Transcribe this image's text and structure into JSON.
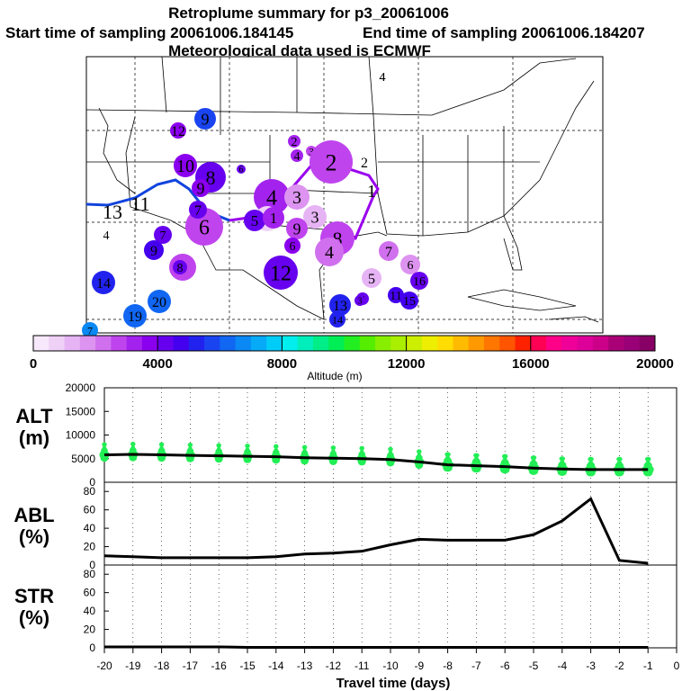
{
  "header": {
    "title": "Retroplume summary for p3_20061006",
    "start": "Start time of sampling 20061006.184145",
    "end": "End time of sampling 20061006.184207",
    "met": "Meteorological data used is ECMWF"
  },
  "colorbar": {
    "ticks": [
      "0",
      "4000",
      "8000",
      "12000",
      "16000",
      "20000"
    ],
    "label": "Altitude (m)"
  },
  "map_clusters": [
    {
      "label": "4",
      "alt": 3400
    },
    {
      "label": "9",
      "alt": 5800
    },
    {
      "label": "12",
      "alt": 3800
    },
    {
      "label": "2",
      "alt": 3000
    },
    {
      "label": "3",
      "alt": 2500
    },
    {
      "label": "2",
      "alt": 2600
    },
    {
      "label": "4",
      "alt": 3000
    },
    {
      "label": "8",
      "alt": 4400
    },
    {
      "label": "9",
      "alt": 3800
    },
    {
      "label": "10",
      "alt": 3500
    },
    {
      "label": "4",
      "alt": 3400
    },
    {
      "label": "3",
      "alt": 1600
    },
    {
      "label": "3",
      "alt": 1300
    },
    {
      "label": "3",
      "alt": 900
    },
    {
      "label": "6",
      "alt": 2900
    },
    {
      "label": "7",
      "alt": 4000
    },
    {
      "label": "5",
      "alt": 4300
    },
    {
      "label": "1",
      "alt": 3100
    },
    {
      "label": "8",
      "alt": 2900
    },
    {
      "label": "9",
      "alt": 2900
    },
    {
      "label": "6",
      "alt": 3500
    },
    {
      "label": "4",
      "alt": 2200
    },
    {
      "label": "8",
      "alt": 2700
    },
    {
      "label": "7",
      "alt": 2300
    },
    {
      "label": "6",
      "alt": 1900
    },
    {
      "label": "6",
      "alt": 4100
    },
    {
      "label": "5",
      "alt": 1100
    },
    {
      "label": "12",
      "alt": 4200
    },
    {
      "label": "7",
      "alt": 4100
    },
    {
      "label": "9",
      "alt": 4600
    },
    {
      "label": "8",
      "alt": 4400
    },
    {
      "label": "3",
      "alt": 4400
    },
    {
      "label": "14",
      "alt": 5400
    },
    {
      "label": "20",
      "alt": 6200
    },
    {
      "label": "19",
      "alt": 6400
    },
    {
      "label": "13",
      "alt": 5300
    },
    {
      "label": "14",
      "alt": 5400
    },
    {
      "label": "3",
      "alt": 4000
    },
    {
      "label": "11",
      "alt": 4700
    },
    {
      "label": "15",
      "alt": 4600
    },
    {
      "label": "16",
      "alt": 4400
    },
    {
      "label": "7",
      "alt": 6700
    }
  ],
  "map_labels": [
    {
      "label": "4"
    },
    {
      "label": "2"
    },
    {
      "label": "1"
    },
    {
      "label": "13"
    },
    {
      "label": "11"
    },
    {
      "label": "4"
    }
  ],
  "chart_data": [
    {
      "type": "line",
      "name": "ALT",
      "ylabel_line1": "ALT",
      "ylabel_line2": "(m)",
      "ylim": [
        0,
        20000
      ],
      "yticks": [
        "0",
        "5000",
        "10000",
        "15000",
        "20000"
      ],
      "x": [
        -20,
        -19,
        -18,
        -17,
        -16,
        -15,
        -14,
        -13,
        -12,
        -11,
        -10,
        -9,
        -8,
        -7,
        -6,
        -5,
        -4,
        -3,
        -2,
        -1
      ],
      "values": [
        5800,
        5900,
        5800,
        5700,
        5600,
        5500,
        5400,
        5200,
        5100,
        5000,
        4800,
        4300,
        3700,
        3500,
        3300,
        3000,
        2800,
        2700,
        2700,
        2700
      ],
      "scatter_color": "#22ee55"
    },
    {
      "type": "line",
      "name": "ABL",
      "ylabel_line1": "ABL",
      "ylabel_line2": "(%)",
      "ylim": [
        0,
        90
      ],
      "yticks": [
        "0",
        "20",
        "40",
        "60",
        "80"
      ],
      "x": [
        -20,
        -19,
        -18,
        -17,
        -16,
        -15,
        -14,
        -13,
        -12,
        -11,
        -10,
        -9,
        -8,
        -7,
        -6,
        -5,
        -4,
        -3,
        -2,
        -1
      ],
      "values": [
        10,
        9,
        8,
        8,
        8,
        8,
        9,
        12,
        13,
        15,
        22,
        28,
        27,
        27,
        27,
        33,
        48,
        72,
        5,
        2
      ]
    },
    {
      "type": "line",
      "name": "STR",
      "ylabel_line1": "STR",
      "ylabel_line2": "(%)",
      "ylim": [
        0,
        90
      ],
      "yticks": [
        "0",
        "20",
        "40",
        "60",
        "80"
      ],
      "x": [
        -20,
        -19,
        -18,
        -17,
        -16,
        -15,
        -14,
        -13,
        -12,
        -11,
        -10,
        -9,
        -8,
        -7,
        -6,
        -5,
        -4,
        -3,
        -2,
        -1
      ],
      "values": [
        1,
        1,
        1,
        1,
        1,
        0.5,
        0.5,
        0.5,
        0.5,
        0.5,
        0.5,
        0.5,
        0.5,
        0.5,
        0.5,
        0.5,
        0.5,
        0.5,
        0.5,
        0.5
      ]
    }
  ],
  "xaxis": {
    "ticks": [
      "-20",
      "-19",
      "-18",
      "-17",
      "-16",
      "-15",
      "-14",
      "-13",
      "-12",
      "-11",
      "-10",
      "-9",
      "-8",
      "-7",
      "-6",
      "-5",
      "-4",
      "-3",
      "-2",
      "-1",
      "0"
    ],
    "label": "Travel time (days)"
  }
}
